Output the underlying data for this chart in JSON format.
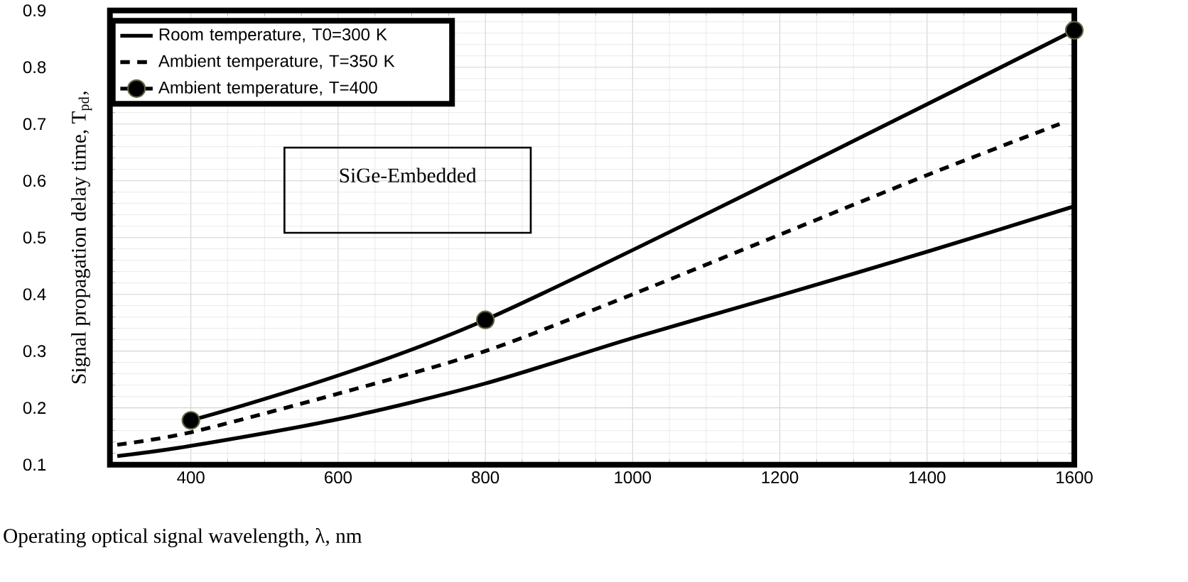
{
  "chart_data": {
    "type": "line",
    "xlabel": "Operating optical signal wavelength, λ, nm",
    "ylabel": "Signal propagation delay time, T$_{pd}$,",
    "xlim": [
      290,
      1600
    ],
    "xticks": [
      400,
      600,
      800,
      1000,
      1200,
      1400,
      1600
    ],
    "ylim": [
      0.1,
      0.9
    ],
    "yticks": [
      0.1,
      0.2,
      0.3,
      0.4,
      0.5,
      0.6,
      0.7,
      0.8,
      0.9
    ],
    "grid": true,
    "legend": "top left",
    "annotations": [
      "SiGe-Embedded"
    ],
    "series": [
      {
        "name": "Room temperature, T0=300 K",
        "color": "#000000",
        "line_style": "solid",
        "marker": "none",
        "x": [
          300,
          400,
          600,
          800,
          1000,
          1200,
          1400,
          1600
        ],
        "values": [
          0.115,
          0.133,
          0.18,
          0.243,
          0.323,
          0.398,
          0.475,
          0.555
        ]
      },
      {
        "name": "Ambient temperature, T=350 K",
        "color": "#000000",
        "line_style": "dashed",
        "marker": "none",
        "x": [
          300,
          400,
          600,
          800,
          1000,
          1200,
          1400,
          1580
        ],
        "values": [
          0.135,
          0.157,
          0.225,
          0.3,
          0.4,
          0.505,
          0.61,
          0.7
        ]
      },
      {
        "name": "Ambient temperature, T=400",
        "color": "#000000",
        "line_style": "solid",
        "marker": "circle",
        "x": [
          400,
          800,
          1600
        ],
        "values": [
          0.178,
          0.355,
          0.865
        ]
      }
    ]
  }
}
